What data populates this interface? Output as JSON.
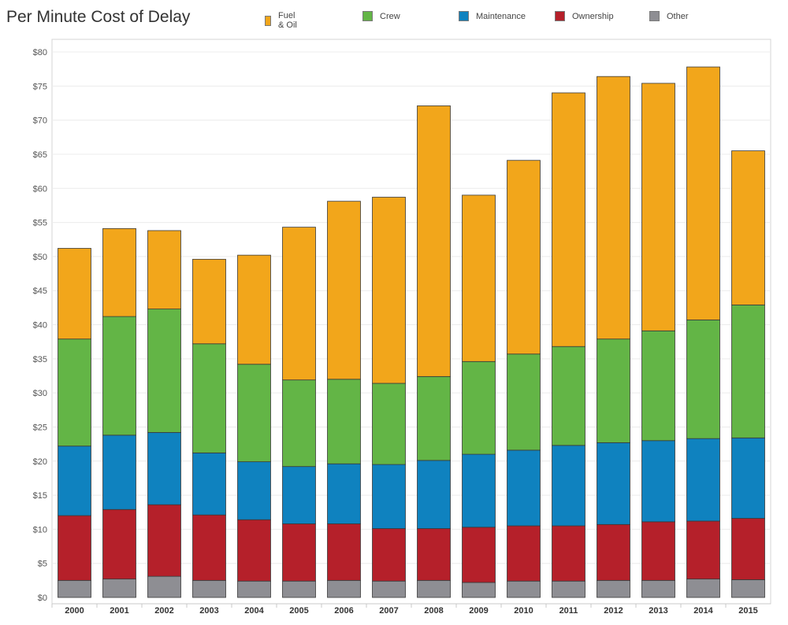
{
  "chart_data": {
    "type": "bar",
    "stacked": true,
    "title": "Per Minute Cost of Delay",
    "xlabel": "",
    "ylabel": "",
    "ylim": [
      0,
      80
    ],
    "y_ticks": [
      "$0",
      "$5",
      "$10",
      "$15",
      "$20",
      "$25",
      "$30",
      "$35",
      "$40",
      "$45",
      "$50",
      "$55",
      "$60",
      "$65",
      "$70",
      "$75",
      "$80"
    ],
    "y_tick_values": [
      0,
      5,
      10,
      15,
      20,
      25,
      30,
      35,
      40,
      45,
      50,
      55,
      60,
      65,
      70,
      75,
      80
    ],
    "grid": true,
    "legend_position": "top",
    "categories": [
      "2000",
      "2001",
      "2002",
      "2003",
      "2004",
      "2005",
      "2006",
      "2007",
      "2008",
      "2009",
      "2010",
      "2011",
      "2012",
      "2013",
      "2014",
      "2015"
    ],
    "series": [
      {
        "name": "Other",
        "color": "#8e8e93",
        "values": [
          2.5,
          2.7,
          3.1,
          2.5,
          2.4,
          2.4,
          2.5,
          2.4,
          2.5,
          2.2,
          2.4,
          2.4,
          2.5,
          2.5,
          2.7,
          2.6
        ]
      },
      {
        "name": "Ownership",
        "color": "#b5202a",
        "values": [
          9.5,
          10.2,
          10.5,
          9.6,
          9.0,
          8.4,
          8.3,
          7.7,
          7.6,
          8.1,
          8.1,
          8.1,
          8.2,
          8.6,
          8.5,
          9.0
        ]
      },
      {
        "name": "Maintenance",
        "color": "#0f82bf",
        "values": [
          10.2,
          10.9,
          10.6,
          9.1,
          8.5,
          8.4,
          8.8,
          9.4,
          10.0,
          10.7,
          11.1,
          11.8,
          12.0,
          11.9,
          12.1,
          11.8
        ]
      },
      {
        "name": "Crew",
        "color": "#63b546",
        "values": [
          15.7,
          17.4,
          18.1,
          16.0,
          14.3,
          12.7,
          12.4,
          11.9,
          12.3,
          13.6,
          14.1,
          14.5,
          15.2,
          16.1,
          17.4,
          19.5
        ]
      },
      {
        "name": "Fuel & Oil",
        "color": "#f2a61b",
        "values": [
          13.3,
          12.9,
          11.5,
          12.4,
          16.0,
          22.4,
          26.1,
          27.3,
          39.7,
          24.4,
          28.4,
          37.2,
          38.5,
          36.3,
          37.1,
          22.6
        ]
      }
    ],
    "legend_order": [
      "Fuel & Oil",
      "Crew",
      "Maintenance",
      "Ownership",
      "Other"
    ]
  }
}
